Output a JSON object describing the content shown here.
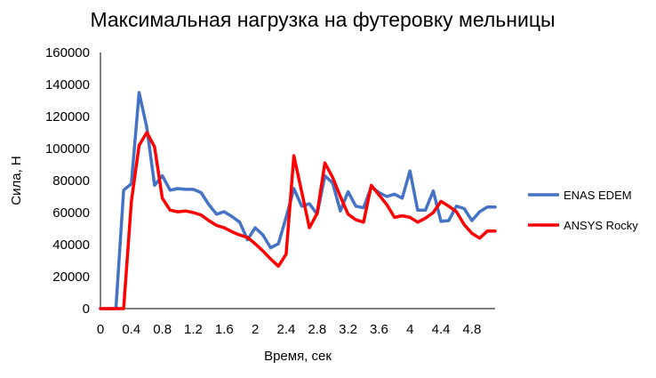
{
  "chart_data": {
    "type": "line",
    "title": "Максимальная нагрузка на футеровку мельницы",
    "xlabel": "Время, сек",
    "ylabel": "Сила, Н",
    "xlim": [
      0,
      5.1
    ],
    "ylim": [
      0,
      160000
    ],
    "x_ticks": [
      "0",
      "0.4",
      "0.8",
      "1.2",
      "1.6",
      "2",
      "2.4",
      "2.8",
      "3.2",
      "3.6",
      "4",
      "4.4",
      "4.8"
    ],
    "y_ticks": [
      "0",
      "20000",
      "40000",
      "60000",
      "80000",
      "100000",
      "120000",
      "140000",
      "160000"
    ],
    "grid": false,
    "legend_position": "right",
    "colors": {
      "ENAS EDEM": "#4472C4",
      "ANSYS Rocky": "#FF0000"
    },
    "x": [
      0,
      0.1,
      0.2,
      0.3,
      0.4,
      0.5,
      0.6,
      0.7,
      0.8,
      0.9,
      1.0,
      1.1,
      1.2,
      1.3,
      1.4,
      1.5,
      1.6,
      1.7,
      1.8,
      1.9,
      2.0,
      2.1,
      2.2,
      2.3,
      2.4,
      2.5,
      2.6,
      2.7,
      2.8,
      2.9,
      3.0,
      3.1,
      3.2,
      3.3,
      3.4,
      3.5,
      3.6,
      3.7,
      3.8,
      3.9,
      4.0,
      4.1,
      4.2,
      4.3,
      4.4,
      4.5,
      4.6,
      4.7,
      4.8,
      4.9,
      5.0,
      5.1
    ],
    "series": [
      {
        "name": "ENAS EDEM",
        "values": [
          0,
          0,
          0,
          74000,
          78000,
          135000,
          113000,
          77000,
          83000,
          74000,
          75000,
          74500,
          74500,
          72500,
          65000,
          59000,
          60500,
          57500,
          54000,
          43000,
          50500,
          46000,
          38000,
          40500,
          57000,
          75000,
          64000,
          65500,
          59000,
          83000,
          78500,
          61000,
          73000,
          64000,
          63000,
          76000,
          72500,
          70000,
          71500,
          69000,
          86000,
          61500,
          61500,
          73500,
          54500,
          55000,
          64000,
          62500,
          55000,
          60500,
          63500,
          63500
        ],
        "color": "#4472C4"
      },
      {
        "name": "ANSYS Rocky",
        "values": [
          0,
          0,
          0,
          0,
          67000,
          102000,
          110000,
          101000,
          69000,
          61500,
          60500,
          61000,
          60000,
          58500,
          55000,
          52000,
          50500,
          48000,
          46000,
          44500,
          40500,
          36000,
          31000,
          26500,
          34000,
          95500,
          73000,
          50500,
          59500,
          91000,
          82000,
          70000,
          59000,
          55500,
          54000,
          77000,
          71000,
          65000,
          57000,
          58000,
          57000,
          54000,
          56500,
          60000,
          67000,
          64000,
          60500,
          52500,
          47000,
          44000,
          48500,
          48500
        ],
        "color": "#FF0000"
      }
    ]
  }
}
